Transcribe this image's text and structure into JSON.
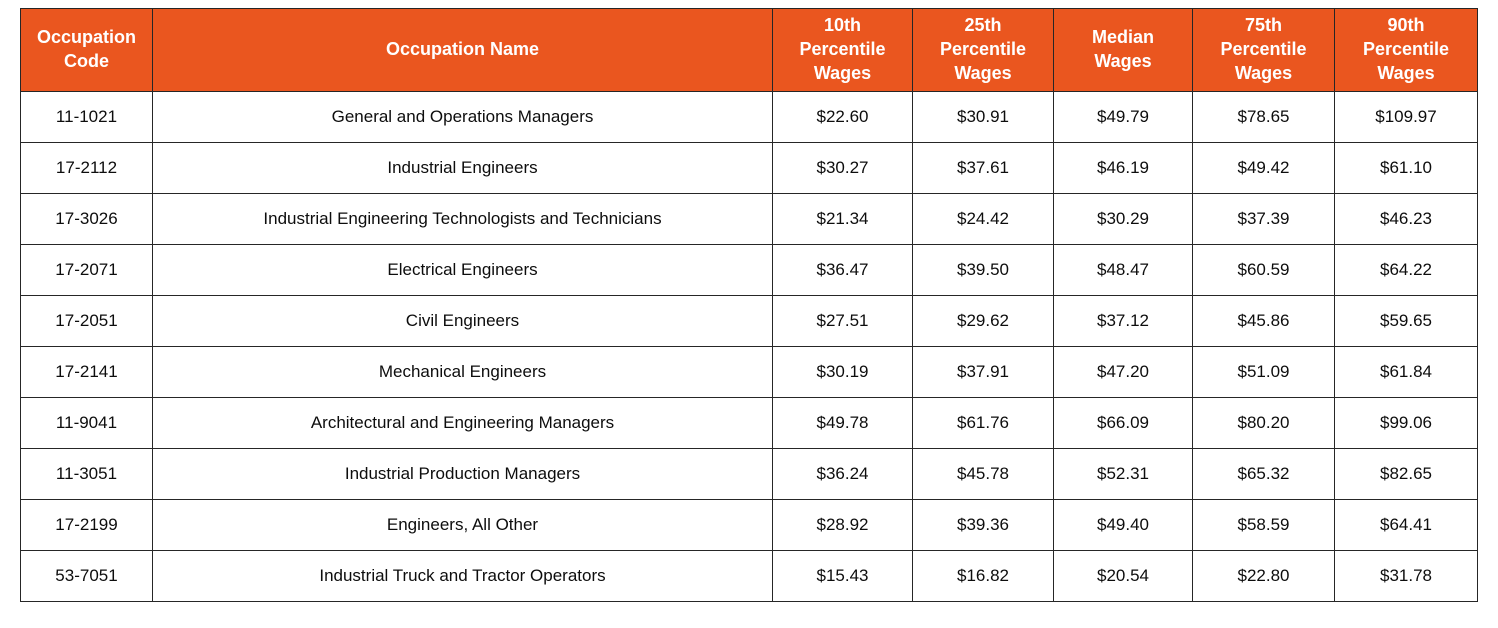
{
  "table": {
    "columns": [
      {
        "id": "code",
        "label": "Occupation\nCode"
      },
      {
        "id": "name",
        "label": "Occupation Name"
      },
      {
        "id": "p10",
        "label": "10th\nPercentile\nWages"
      },
      {
        "id": "p25",
        "label": "25th\nPercentile\nWages"
      },
      {
        "id": "median",
        "label": "Median\nWages"
      },
      {
        "id": "p75",
        "label": "75th\nPercentile\nWages"
      },
      {
        "id": "p90",
        "label": "90th\nPercentile\nWages"
      }
    ],
    "rows": [
      [
        "11-1021",
        "General and Operations Managers",
        "$22.60",
        "$30.91",
        "$49.79",
        "$78.65",
        "$109.97"
      ],
      [
        "17-2112",
        "Industrial Engineers",
        "$30.27",
        "$37.61",
        "$46.19",
        "$49.42",
        "$61.10"
      ],
      [
        "17-3026",
        "Industrial Engineering Technologists and Technicians",
        "$21.34",
        "$24.42",
        "$30.29",
        "$37.39",
        "$46.23"
      ],
      [
        "17-2071",
        "Electrical Engineers",
        "$36.47",
        "$39.50",
        "$48.47",
        "$60.59",
        "$64.22"
      ],
      [
        "17-2051",
        "Civil Engineers",
        "$27.51",
        "$29.62",
        "$37.12",
        "$45.86",
        "$59.65"
      ],
      [
        "17-2141",
        "Mechanical Engineers",
        "$30.19",
        "$37.91",
        "$47.20",
        "$51.09",
        "$61.84"
      ],
      [
        "11-9041",
        "Architectural and Engineering Managers",
        "$49.78",
        "$61.76",
        "$66.09",
        "$80.20",
        "$99.06"
      ],
      [
        "11-3051",
        "Industrial Production Managers",
        "$36.24",
        "$45.78",
        "$52.31",
        "$65.32",
        "$82.65"
      ],
      [
        "17-2199",
        "Engineers, All Other",
        "$28.92",
        "$39.36",
        "$49.40",
        "$58.59",
        "$64.41"
      ],
      [
        "53-7051",
        "Industrial Truck and Tractor Operators",
        "$15.43",
        "$16.82",
        "$20.54",
        "$22.80",
        "$31.78"
      ]
    ],
    "colors": {
      "header_bg": "#EA561F",
      "header_text": "#FFFFFF",
      "body_text": "#0D0D0D",
      "border": "#262626"
    }
  },
  "chart_data": {
    "type": "table",
    "title": "",
    "columns": [
      "Occupation Code",
      "Occupation Name",
      "10th Percentile Wages",
      "25th Percentile Wages",
      "Median Wages",
      "75th Percentile Wages",
      "90th Percentile Wages"
    ],
    "rows": [
      [
        "11-1021",
        "General and Operations Managers",
        22.6,
        30.91,
        49.79,
        78.65,
        109.97
      ],
      [
        "17-2112",
        "Industrial Engineers",
        30.27,
        37.61,
        46.19,
        49.42,
        61.1
      ],
      [
        "17-3026",
        "Industrial Engineering Technologists and Technicians",
        21.34,
        24.42,
        30.29,
        37.39,
        46.23
      ],
      [
        "17-2071",
        "Electrical Engineers",
        36.47,
        39.5,
        48.47,
        60.59,
        64.22
      ],
      [
        "17-2051",
        "Civil Engineers",
        27.51,
        29.62,
        37.12,
        45.86,
        59.65
      ],
      [
        "17-2141",
        "Mechanical Engineers",
        30.19,
        37.91,
        47.2,
        51.09,
        61.84
      ],
      [
        "11-9041",
        "Architectural and Engineering Managers",
        49.78,
        61.76,
        66.09,
        80.2,
        99.06
      ],
      [
        "11-3051",
        "Industrial Production Managers",
        36.24,
        45.78,
        52.31,
        65.32,
        82.65
      ],
      [
        "17-2199",
        "Engineers, All Other",
        28.92,
        39.36,
        49.4,
        58.59,
        64.41
      ],
      [
        "53-7051",
        "Industrial Truck and Tractor Operators",
        15.43,
        16.82,
        20.54,
        22.8,
        31.78
      ]
    ],
    "units": "USD hourly wages",
    "layout_hints": {
      "header_style": "orange-filled",
      "grid": true,
      "alignment": "center"
    }
  }
}
